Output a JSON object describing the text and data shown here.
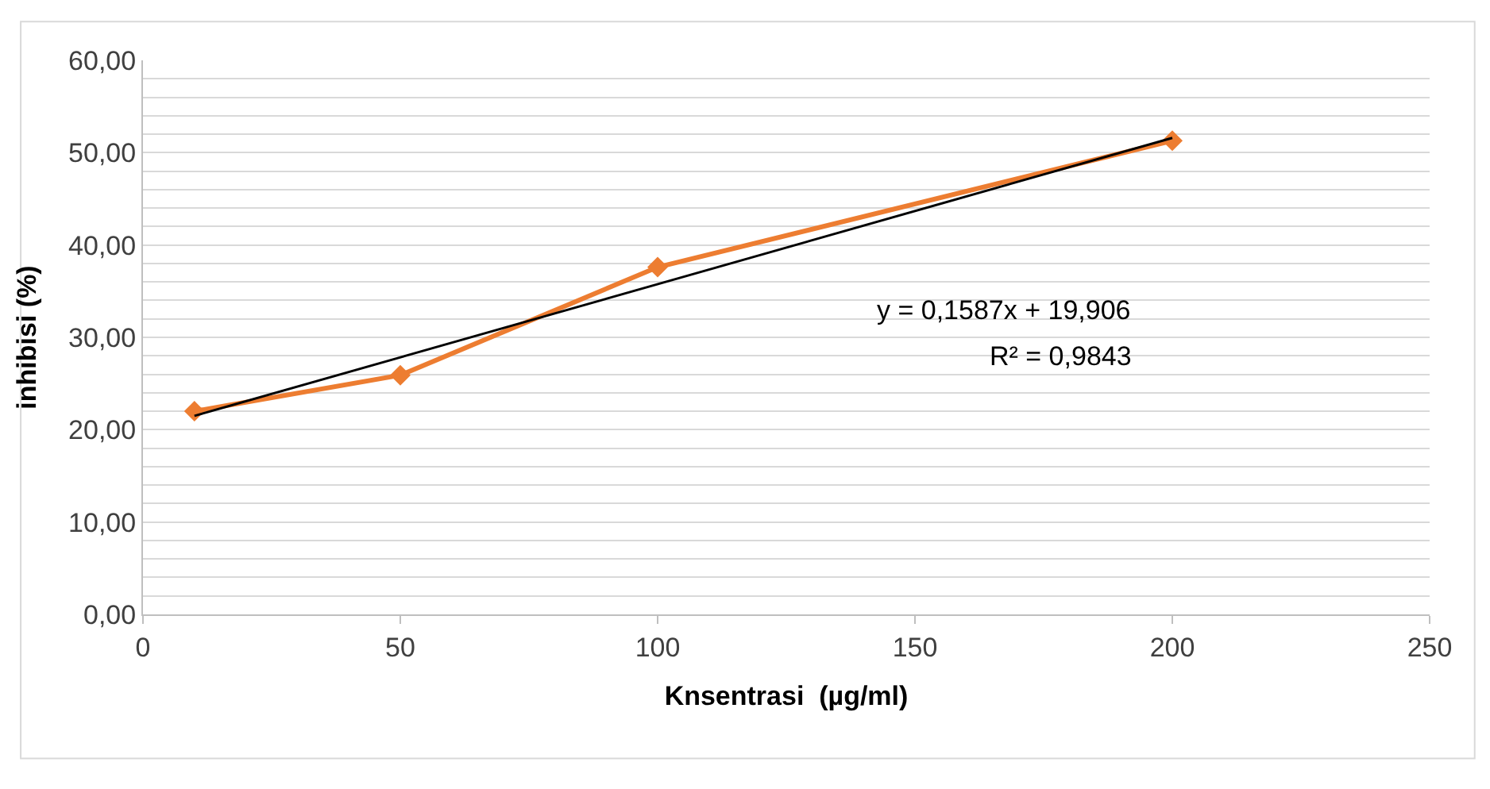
{
  "chart_data": {
    "type": "line",
    "xlabel": "Knsentrasi  (µg/ml)",
    "ylabel": "inhibisi (%)",
    "series": [
      {
        "x": [
          10,
          50,
          100,
          200
        ],
        "values": [
          22.0,
          25.9,
          37.6,
          51.3
        ],
        "color": "#ed7d31",
        "marker": "diamond"
      },
      {
        "x": [
          10,
          200
        ],
        "values": [
          21.5,
          51.6
        ],
        "color": "#000000",
        "marker": "none"
      }
    ],
    "xlim": [
      0,
      250
    ],
    "xticks": [
      0,
      50,
      100,
      150,
      200,
      250
    ],
    "ylim": [
      0,
      60
    ],
    "yticks": [
      {
        "value": 0,
        "label": "0,00"
      },
      {
        "value": 2,
        "label": null
      },
      {
        "value": 4,
        "label": null
      },
      {
        "value": 6,
        "label": null
      },
      {
        "value": 8,
        "label": null
      },
      {
        "value": 10,
        "label": "10,00"
      },
      {
        "value": 12,
        "label": null
      },
      {
        "value": 14,
        "label": null
      },
      {
        "value": 16,
        "label": null
      },
      {
        "value": 18,
        "label": null
      },
      {
        "value": 20,
        "label": "20,00"
      },
      {
        "value": 22,
        "label": null
      },
      {
        "value": 24,
        "label": null
      },
      {
        "value": 26,
        "label": null
      },
      {
        "value": 28,
        "label": null
      },
      {
        "value": 30,
        "label": "30,00"
      },
      {
        "value": 32,
        "label": null
      },
      {
        "value": 34,
        "label": null
      },
      {
        "value": 36,
        "label": null
      },
      {
        "value": 38,
        "label": null
      },
      {
        "value": 40,
        "label": "40,00"
      },
      {
        "value": 42,
        "label": null
      },
      {
        "value": 44,
        "label": null
      },
      {
        "value": 46,
        "label": null
      },
      {
        "value": 48,
        "label": null
      },
      {
        "value": 50,
        "label": "50,00"
      },
      {
        "value": 52,
        "label": null
      },
      {
        "value": 54,
        "label": null
      },
      {
        "value": 56,
        "label": null
      },
      {
        "value": 58,
        "label": null
      },
      {
        "value": 60,
        "label": "60,00"
      }
    ],
    "grid": "y",
    "annotations": [
      "y = 0,1587x + 19,906",
      "R² = 0,9843"
    ]
  }
}
